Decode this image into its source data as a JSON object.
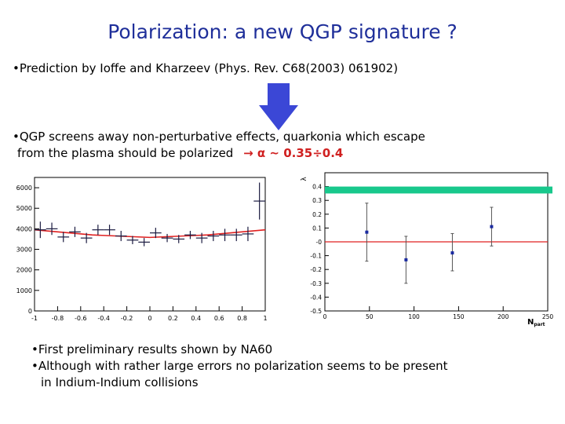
{
  "slide": {
    "title": "Polarization: a new QGP signature ?",
    "bullet1": "•Prediction by Ioffe and Kharzeev (Phys. Rev. C68(2003) 061902)",
    "bullet2_line1": "•QGP screens away non-perturbative effects, quarkonia which escape",
    "bullet2_line2_prefix": "from the plasma should be polarized",
    "bullet2_line2_symbols": "→ α ~ 0.35÷0.4",
    "bullet3_line1": "•First preliminary results shown by NA60",
    "bullet3_line2": "•Although with rather large errors no polarization seems to be present",
    "bullet3_line3": "in Indium-Indium collisions"
  },
  "colors": {
    "title": "#1f2f9a",
    "arrow": "#3b47d6",
    "accent": "#d02020",
    "fit_line": "#e02020",
    "band": "#18c88c",
    "points": "#1a2aa0"
  },
  "chart_data": [
    {
      "type": "scatter",
      "title": "",
      "xlabel": "",
      "ylabel": "",
      "xlim": [
        -1,
        1
      ],
      "ylim": [
        0,
        6500
      ],
      "xticks": [
        -1,
        -0.8,
        -0.6,
        -0.4,
        -0.2,
        0,
        0.2,
        0.4,
        0.6,
        0.8,
        1
      ],
      "xtick_labels": [
        "-1",
        "-0.8",
        "-0.6",
        "-0.4",
        "-0.2",
        "0",
        "0.2",
        "0.4",
        "0.6",
        "0.8",
        "1"
      ],
      "yticks": [
        0,
        1000,
        2000,
        3000,
        4000,
        5000,
        6000
      ],
      "ytick_labels": [
        "0",
        "1000",
        "2000",
        "3000",
        "4000",
        "5000",
        "6000"
      ],
      "points": [
        {
          "x": -0.95,
          "y": 3950,
          "xerr": 0.05,
          "yerr": 400
        },
        {
          "x": -0.85,
          "y": 4000,
          "xerr": 0.05,
          "yerr": 300
        },
        {
          "x": -0.75,
          "y": 3600,
          "xerr": 0.05,
          "yerr": 250
        },
        {
          "x": -0.65,
          "y": 3850,
          "xerr": 0.05,
          "yerr": 250
        },
        {
          "x": -0.55,
          "y": 3550,
          "xerr": 0.05,
          "yerr": 250
        },
        {
          "x": -0.45,
          "y": 3950,
          "xerr": 0.05,
          "yerr": 250
        },
        {
          "x": -0.35,
          "y": 3950,
          "xerr": 0.05,
          "yerr": 250
        },
        {
          "x": -0.25,
          "y": 3650,
          "xerr": 0.05,
          "yerr": 250
        },
        {
          "x": -0.15,
          "y": 3450,
          "xerr": 0.05,
          "yerr": 200
        },
        {
          "x": -0.05,
          "y": 3350,
          "xerr": 0.05,
          "yerr": 200
        },
        {
          "x": 0.05,
          "y": 3800,
          "xerr": 0.05,
          "yerr": 250
        },
        {
          "x": 0.15,
          "y": 3550,
          "xerr": 0.05,
          "yerr": 200
        },
        {
          "x": 0.25,
          "y": 3500,
          "xerr": 0.05,
          "yerr": 200
        },
        {
          "x": 0.35,
          "y": 3700,
          "xerr": 0.05,
          "yerr": 200
        },
        {
          "x": 0.45,
          "y": 3550,
          "xerr": 0.05,
          "yerr": 250
        },
        {
          "x": 0.55,
          "y": 3650,
          "xerr": 0.05,
          "yerr": 250
        },
        {
          "x": 0.65,
          "y": 3700,
          "xerr": 0.05,
          "yerr": 300
        },
        {
          "x": 0.75,
          "y": 3700,
          "xerr": 0.05,
          "yerr": 300
        },
        {
          "x": 0.85,
          "y": 3750,
          "xerr": 0.05,
          "yerr": 350
        },
        {
          "x": 0.95,
          "y": 5350,
          "xerr": 0.05,
          "yerr": 900
        }
      ],
      "fit": {
        "x": [
          -1,
          -0.5,
          0,
          0.5,
          1
        ],
        "y": [
          3950,
          3700,
          3580,
          3700,
          3950
        ]
      },
      "grid": false
    },
    {
      "type": "scatter",
      "title": "",
      "xlabel": "N",
      "xlabel_sub": "part",
      "ylabel": "λ",
      "xlim": [
        0,
        250
      ],
      "ylim": [
        -0.5,
        0.5
      ],
      "xticks": [
        0,
        50,
        100,
        150,
        200,
        250
      ],
      "xtick_labels": [
        "0",
        "50",
        "100",
        "150",
        "200",
        "250"
      ],
      "yticks": [
        -0.5,
        -0.4,
        -0.3,
        -0.2,
        -0.1,
        0,
        0.1,
        0.2,
        0.3,
        0.4
      ],
      "ytick_labels": [
        "-0.5",
        "-0.4",
        "-0.3",
        "-0.2",
        "-0.1",
        "-0",
        "0.1",
        "0.2",
        "0.3",
        "0.4"
      ],
      "points": [
        {
          "x": 47,
          "y": 0.07,
          "yerr_low": 0.21,
          "yerr_high": 0.21
        },
        {
          "x": 91,
          "y": -0.13,
          "yerr_low": 0.17,
          "yerr_high": 0.17
        },
        {
          "x": 143,
          "y": -0.08,
          "yerr_low": 0.13,
          "yerr_high": 0.14
        },
        {
          "x": 187,
          "y": 0.11,
          "yerr_low": 0.14,
          "yerr_high": 0.14
        }
      ],
      "reference_line": 0,
      "prediction_band": [
        0.35,
        0.4
      ],
      "grid": false
    }
  ]
}
